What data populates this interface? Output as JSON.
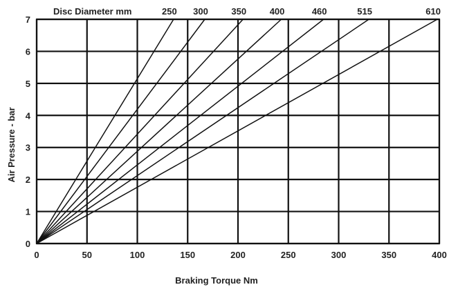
{
  "chart_data": {
    "type": "line",
    "legend_title": "Disc Diameter mm",
    "xlabel": "Braking Torque Nm",
    "ylabel": "Air Pressure - bar",
    "xlim": [
      0,
      400
    ],
    "ylim": [
      0,
      7
    ],
    "x_ticks": [
      "0",
      "50",
      "100",
      "150",
      "200",
      "250",
      "300",
      "350",
      "400"
    ],
    "y_ticks": [
      "0",
      "1",
      "2",
      "3",
      "4",
      "5",
      "6",
      "7"
    ],
    "grid": true,
    "series": [
      {
        "name": "250",
        "x": [
          0,
          136
        ],
        "y": [
          0,
          7
        ]
      },
      {
        "name": "300",
        "x": [
          0,
          167
        ],
        "y": [
          0,
          7
        ]
      },
      {
        "name": "350",
        "x": [
          0,
          205
        ],
        "y": [
          0,
          7
        ]
      },
      {
        "name": "400",
        "x": [
          0,
          243
        ],
        "y": [
          0,
          7
        ]
      },
      {
        "name": "460",
        "x": [
          0,
          285
        ],
        "y": [
          0,
          7
        ]
      },
      {
        "name": "515",
        "x": [
          0,
          330
        ],
        "y": [
          0,
          7
        ]
      },
      {
        "name": "610",
        "x": [
          0,
          398
        ],
        "y": [
          0,
          7
        ]
      }
    ]
  }
}
